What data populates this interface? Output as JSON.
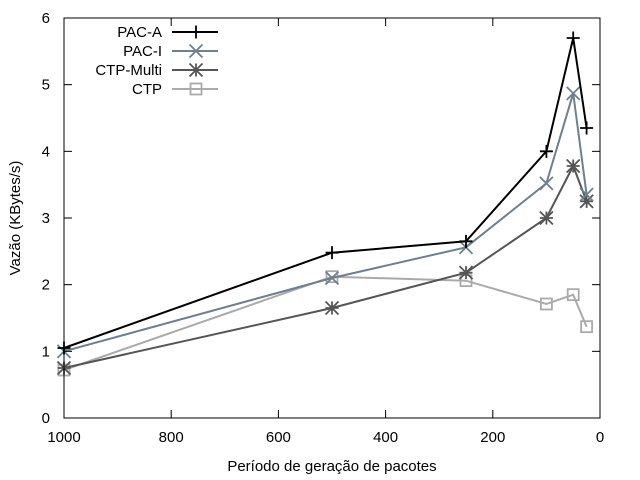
{
  "chart_data": {
    "type": "line",
    "xlabel": "Período de geração de pacotes",
    "ylabel": "Vazão (KBytes/s)",
    "xlim": [
      1000,
      0
    ],
    "ylim": [
      0,
      6
    ],
    "x_reversed": true,
    "xticks": [
      "1000",
      "800",
      "600",
      "400",
      "200",
      "0"
    ],
    "yticks": [
      "0",
      "1",
      "2",
      "3",
      "4",
      "5",
      "6"
    ],
    "grid": false,
    "legend_position": "top-left",
    "x": [
      1000,
      500,
      250,
      100,
      50,
      25
    ],
    "series": [
      {
        "name": "PAC-A",
        "marker": "plus",
        "color": "#000000",
        "values": [
          1.05,
          2.48,
          2.65,
          4.0,
          5.7,
          4.35
        ]
      },
      {
        "name": "PAC-I",
        "marker": "cross",
        "color": "#6e8090",
        "values": [
          1.0,
          2.1,
          2.56,
          3.52,
          4.87,
          3.35
        ]
      },
      {
        "name": "CTP-Multi",
        "marker": "star",
        "color": "#555555",
        "values": [
          0.75,
          1.65,
          2.18,
          3.0,
          3.78,
          3.25
        ]
      },
      {
        "name": "CTP",
        "marker": "square",
        "color": "#aaaaaa",
        "values": [
          0.72,
          2.12,
          2.06,
          1.71,
          1.85,
          1.37
        ]
      }
    ]
  }
}
